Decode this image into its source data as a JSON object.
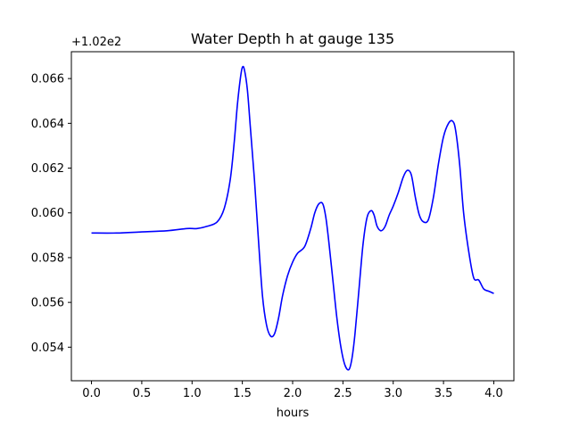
{
  "chart_data": {
    "type": "line",
    "title": "Water Depth h at gauge 135",
    "xlabel": "hours",
    "ylabel": "",
    "offset_label": "+1.02e2",
    "xlim": [
      -0.2,
      4.2
    ],
    "ylim": [
      0.0525,
      0.0672
    ],
    "x_ticks": [
      0.0,
      0.5,
      1.0,
      1.5,
      2.0,
      2.5,
      3.0,
      3.5,
      4.0
    ],
    "x_tick_labels": [
      "0.0",
      "0.5",
      "1.0",
      "1.5",
      "2.0",
      "2.5",
      "3.0",
      "3.5",
      "4.0"
    ],
    "y_ticks": [
      0.054,
      0.056,
      0.058,
      0.06,
      0.062,
      0.064,
      0.066
    ],
    "y_tick_labels": [
      "0.054",
      "0.056",
      "0.058",
      "0.060",
      "0.062",
      "0.064",
      "0.066"
    ],
    "grid": false,
    "series": [
      {
        "color": "#0000ff",
        "x": [
          0.0,
          0.25,
          0.5,
          0.75,
          0.95,
          1.05,
          1.15,
          1.25,
          1.32,
          1.38,
          1.42,
          1.45,
          1.48,
          1.5,
          1.52,
          1.55,
          1.58,
          1.62,
          1.66,
          1.7,
          1.74,
          1.78,
          1.82,
          1.86,
          1.9,
          1.95,
          2.0,
          2.05,
          2.12,
          2.18,
          2.22,
          2.26,
          2.3,
          2.33,
          2.36,
          2.4,
          2.44,
          2.48,
          2.52,
          2.56,
          2.59,
          2.62,
          2.66,
          2.7,
          2.74,
          2.78,
          2.81,
          2.84,
          2.88,
          2.92,
          2.96,
          3.0,
          3.05,
          3.1,
          3.14,
          3.18,
          3.22,
          3.26,
          3.3,
          3.35,
          3.4,
          3.45,
          3.5,
          3.55,
          3.59,
          3.62,
          3.66,
          3.7,
          3.75,
          3.8,
          3.85,
          3.9,
          3.95,
          4.0
        ],
        "y": [
          0.0591,
          0.0591,
          0.05915,
          0.0592,
          0.0593,
          0.0593,
          0.0594,
          0.0596,
          0.0602,
          0.0615,
          0.0632,
          0.0648,
          0.066,
          0.0665,
          0.0664,
          0.0655,
          0.0638,
          0.0615,
          0.0588,
          0.0563,
          0.055,
          0.0545,
          0.0546,
          0.0553,
          0.0563,
          0.0572,
          0.0578,
          0.0582,
          0.0585,
          0.0593,
          0.06,
          0.0604,
          0.0604,
          0.0598,
          0.0587,
          0.057,
          0.0553,
          0.054,
          0.0532,
          0.053,
          0.0535,
          0.0546,
          0.0566,
          0.0586,
          0.0598,
          0.0601,
          0.0599,
          0.0594,
          0.0592,
          0.0594,
          0.0599,
          0.0603,
          0.0609,
          0.0616,
          0.0619,
          0.0617,
          0.0607,
          0.0599,
          0.0596,
          0.0597,
          0.0607,
          0.0622,
          0.0634,
          0.064,
          0.0641,
          0.0637,
          0.0622,
          0.06,
          0.0583,
          0.0571,
          0.057,
          0.0566,
          0.0565,
          0.0564
        ]
      }
    ]
  }
}
